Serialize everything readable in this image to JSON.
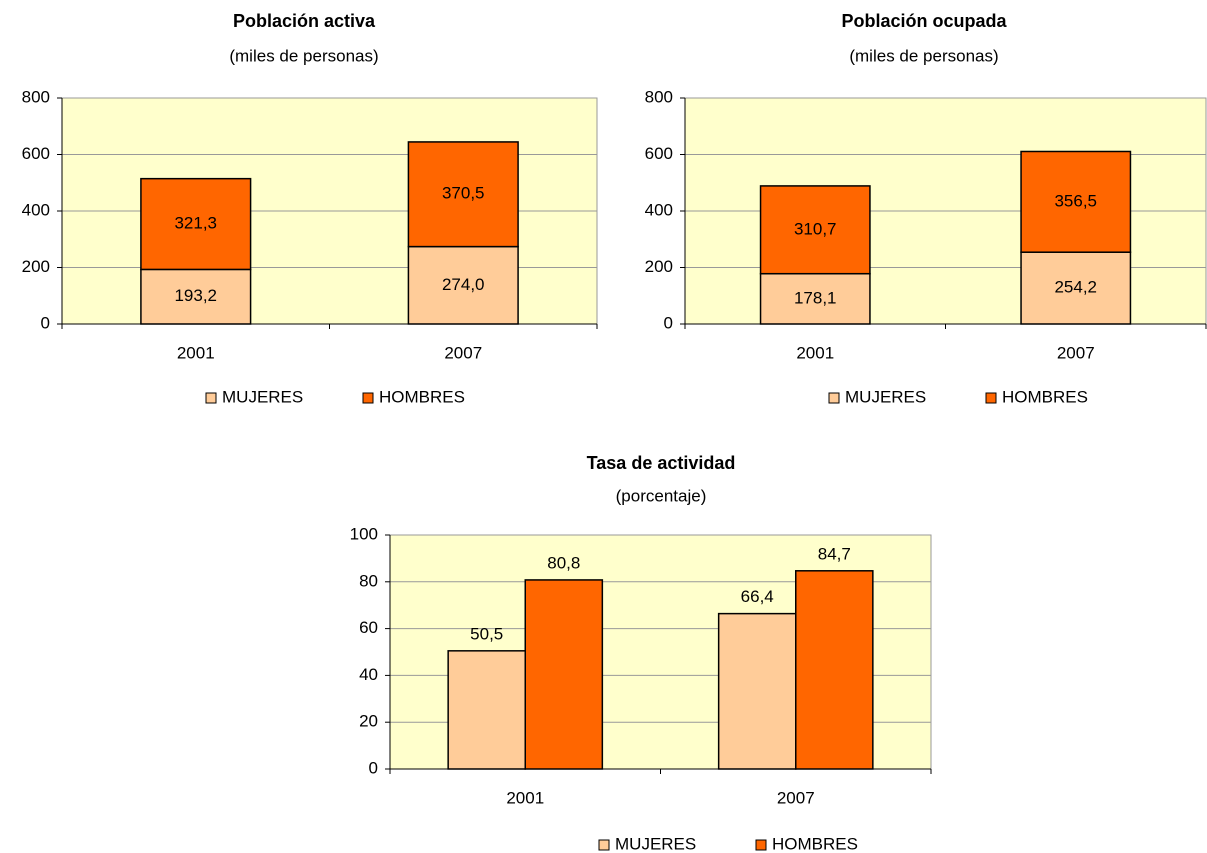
{
  "chart_data": [
    {
      "type": "bar",
      "stacked": true,
      "title": "Población activa",
      "subtitle": "(miles de personas)",
      "categories": [
        "2001",
        "2007"
      ],
      "series": [
        {
          "name": "MUJERES",
          "color": "#ffcc99",
          "values": [
            193.2,
            274.0
          ],
          "value_labels": [
            "193,2",
            "274,0"
          ]
        },
        {
          "name": "HOMBRES",
          "color": "#ff6600",
          "values": [
            321.3,
            370.5
          ],
          "value_labels": [
            "321,3",
            "370,5"
          ]
        }
      ],
      "ylim": [
        0,
        800
      ],
      "yticks": [
        0,
        200,
        400,
        600,
        800
      ],
      "grid": true,
      "legend": "bottom"
    },
    {
      "type": "bar",
      "stacked": true,
      "title": "Población ocupada",
      "subtitle": "(miles de personas)",
      "categories": [
        "2001",
        "2007"
      ],
      "series": [
        {
          "name": "MUJERES",
          "color": "#ffcc99",
          "values": [
            178.1,
            254.2
          ],
          "value_labels": [
            "178,1",
            "254,2"
          ]
        },
        {
          "name": "HOMBRES",
          "color": "#ff6600",
          "values": [
            310.7,
            356.5
          ],
          "value_labels": [
            "310,7",
            "356,5"
          ]
        }
      ],
      "ylim": [
        0,
        800
      ],
      "yticks": [
        0,
        200,
        400,
        600,
        800
      ],
      "grid": true,
      "legend": "bottom"
    },
    {
      "type": "bar",
      "stacked": false,
      "title": "Tasa de actividad",
      "subtitle": "(porcentaje)",
      "categories": [
        "2001",
        "2007"
      ],
      "series": [
        {
          "name": "MUJERES",
          "color": "#ffcc99",
          "values": [
            50.5,
            66.4
          ],
          "value_labels": [
            "50,5",
            "66,4"
          ]
        },
        {
          "name": "HOMBRES",
          "color": "#ff6600",
          "values": [
            80.8,
            84.7
          ],
          "value_labels": [
            "80,8",
            "84,7"
          ]
        }
      ],
      "ylim": [
        0,
        100
      ],
      "yticks": [
        0,
        20,
        40,
        60,
        80,
        100
      ],
      "grid": true,
      "legend": "bottom"
    }
  ]
}
